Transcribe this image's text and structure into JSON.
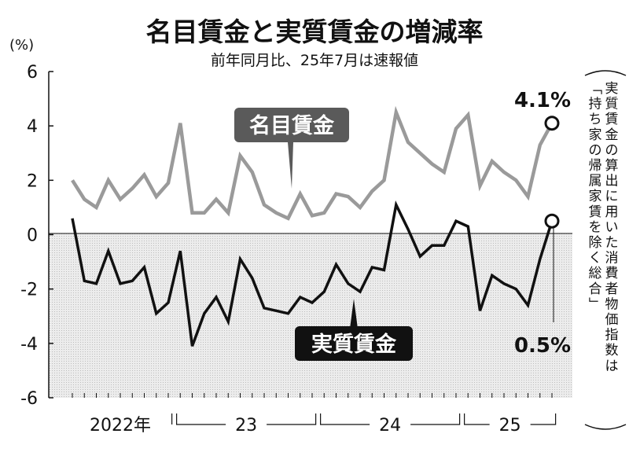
{
  "chart_data": {
    "type": "line",
    "title": "名目賃金と実質賃金の増減率",
    "subtitle": "前年同月比、25年7月は速報値",
    "yunit": "(%)",
    "ylim": [
      -6,
      6
    ],
    "yticks": [
      "6",
      "4",
      "2",
      "0",
      "-2",
      "-4",
      "-6"
    ],
    "xgroups": [
      {
        "label": "2022年"
      },
      {
        "label": "23"
      },
      {
        "label": "24"
      },
      {
        "label": "25"
      }
    ],
    "side_note": "実質賃金の算出に用いた消費者物価指数は「持ち家の帰属家賃を除く総合」",
    "series": [
      {
        "name": "名目賃金",
        "color": "#9a9a9a",
        "values": [
          2.0,
          1.3,
          1.0,
          2.0,
          1.3,
          1.7,
          2.2,
          1.4,
          1.9,
          4.1,
          0.8,
          0.8,
          1.3,
          0.8,
          2.9,
          2.3,
          1.1,
          0.8,
          0.6,
          1.5,
          0.7,
          0.8,
          1.5,
          1.4,
          1.0,
          1.6,
          2.0,
          4.5,
          3.4,
          3.0,
          2.6,
          2.3,
          3.9,
          4.4,
          1.8,
          2.7,
          2.3,
          2.0,
          1.4,
          3.3,
          4.1
        ]
      },
      {
        "name": "実質賃金",
        "color": "#111111",
        "values": [
          0.6,
          -1.7,
          -1.8,
          -0.6,
          -1.8,
          -1.7,
          -1.2,
          -2.9,
          -2.5,
          -0.6,
          -4.1,
          -2.9,
          -2.3,
          -3.2,
          -0.9,
          -1.6,
          -2.7,
          -2.8,
          -2.9,
          -2.3,
          -2.5,
          -2.1,
          -1.1,
          -1.8,
          -2.1,
          -1.2,
          -1.3,
          1.1,
          0.2,
          -0.8,
          -0.4,
          -0.4,
          0.5,
          0.3,
          -2.8,
          -1.5,
          -1.8,
          -2.0,
          -2.6,
          -0.9,
          0.5
        ]
      }
    ],
    "annotations": {
      "last_nominal": "4.1%",
      "last_real": "0.5%"
    }
  }
}
